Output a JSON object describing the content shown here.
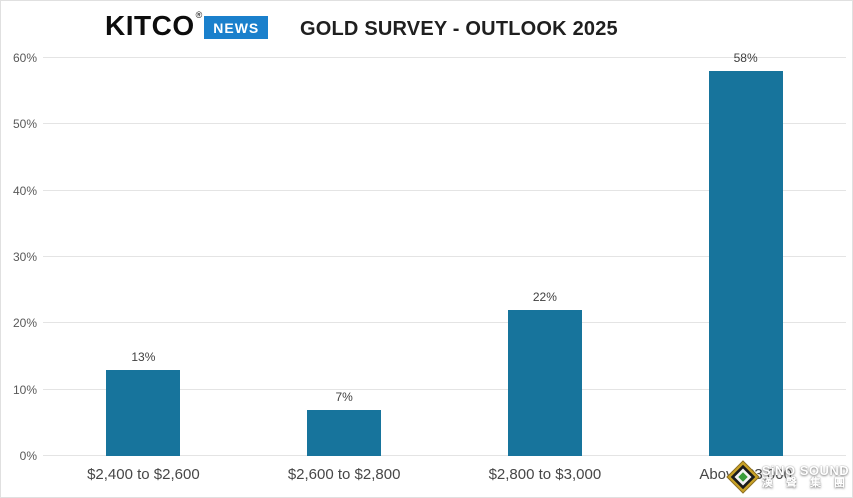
{
  "header": {
    "logo": {
      "brand": "KITCO",
      "registered": "®",
      "news_badge": "NEWS"
    },
    "title": "GOLD SURVEY - OUTLOOK 2025"
  },
  "chart_data": {
    "type": "bar",
    "title": "GOLD SURVEY - OUTLOOK 2025",
    "categories": [
      "$2,400 to $2,600",
      "$2,600 to $2,800",
      "$2,800 to $3,000",
      "Above $3,000"
    ],
    "values": [
      13,
      7,
      22,
      58
    ],
    "value_labels": [
      "13%",
      "7%",
      "22%",
      "58%"
    ],
    "yticks": [
      0,
      10,
      20,
      30,
      40,
      50,
      60
    ],
    "ytick_labels": [
      "0%",
      "10%",
      "20%",
      "30%",
      "40%",
      "50%",
      "60%"
    ],
    "ylim": [
      0,
      60
    ],
    "xlabel": "",
    "ylabel": "",
    "grid": "horizontal",
    "legend_position": "none",
    "bar_color": "#17749c"
  },
  "colors": {
    "bar": "#17749c",
    "kitco_news_blue": "#1a80cc",
    "gridline": "#e4e4e4"
  },
  "watermark": {
    "line1": "SiNO SOUND",
    "line2": "漢 聲 集 團"
  }
}
